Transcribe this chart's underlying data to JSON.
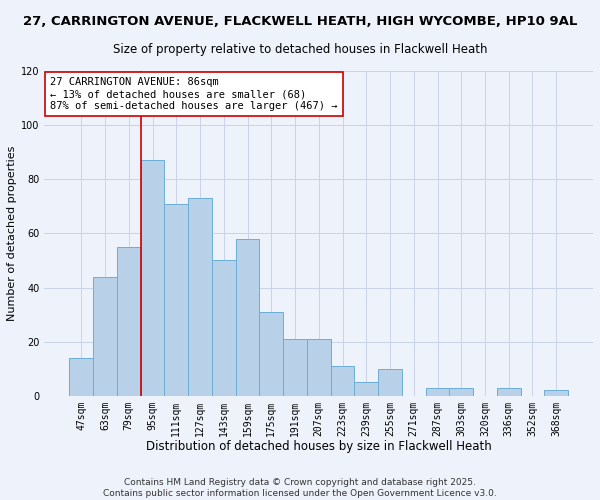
{
  "title": "27, CARRINGTON AVENUE, FLACKWELL HEATH, HIGH WYCOMBE, HP10 9AL",
  "subtitle": "Size of property relative to detached houses in Flackwell Heath",
  "xlabel": "Distribution of detached houses by size in Flackwell Heath",
  "ylabel": "Number of detached properties",
  "bar_values": [
    14,
    44,
    55,
    87,
    71,
    73,
    50,
    58,
    31,
    21,
    21,
    11,
    5,
    10,
    0,
    3,
    3,
    0,
    3,
    0,
    2
  ],
  "x_labels": [
    "47sqm",
    "63sqm",
    "79sqm",
    "95sqm",
    "111sqm",
    "127sqm",
    "143sqm",
    "159sqm",
    "175sqm",
    "191sqm",
    "207sqm",
    "223sqm",
    "239sqm",
    "255sqm",
    "271sqm",
    "287sqm",
    "303sqm",
    "320sqm",
    "336sqm",
    "352sqm",
    "368sqm"
  ],
  "bar_color": "#b8d0e8",
  "bar_edge_color": "#6baed6",
  "background_color": "#eef2fb",
  "grid_color": "#c8d4e8",
  "vline_x_index": 2,
  "vline_color": "#cc0000",
  "annotation_line1": "27 CARRINGTON AVENUE: 86sqm",
  "annotation_line2": "← 13% of detached houses are smaller (68)",
  "annotation_line3": "87% of semi-detached houses are larger (467) →",
  "annotation_box_color": "#ffffff",
  "annotation_box_edge_color": "#cc0000",
  "ylim": [
    0,
    120
  ],
  "yticks": [
    0,
    20,
    40,
    60,
    80,
    100,
    120
  ],
  "footer_text": "Contains HM Land Registry data © Crown copyright and database right 2025.\nContains public sector information licensed under the Open Government Licence v3.0.",
  "title_fontsize": 9.5,
  "subtitle_fontsize": 8.5,
  "xlabel_fontsize": 8.5,
  "ylabel_fontsize": 8,
  "tick_fontsize": 7,
  "annotation_fontsize": 7.5,
  "footer_fontsize": 6.5
}
